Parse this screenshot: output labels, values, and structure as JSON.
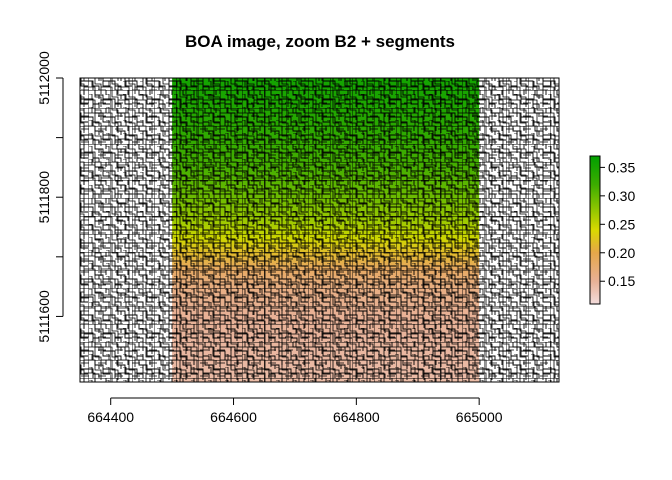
{
  "chart_data": {
    "type": "heatmap",
    "title": "BOA image, zoom B2 + segments",
    "xlabel": "",
    "ylabel": "",
    "xlim": [
      664350,
      665130
    ],
    "ylim": [
      5111490,
      5112000
    ],
    "x_ticks": [
      664400,
      664600,
      664800,
      665000
    ],
    "x_tick_labels": [
      "664400",
      "664600",
      "664800",
      "665000"
    ],
    "y_ticks": [
      5111600,
      5111700,
      5111800,
      5111900,
      5112000
    ],
    "y_tick_labels": [
      "5111600",
      "",
      "5111800",
      "",
      "5112000"
    ],
    "raster_extent": {
      "xmin": 664500,
      "xmax": 665000,
      "ymin": 5111490,
      "ymax": 5112000
    },
    "raster_profile": [
      {
        "y": 5112000,
        "value": 0.355
      },
      {
        "y": 5111950,
        "value": 0.345
      },
      {
        "y": 5111900,
        "value": 0.33
      },
      {
        "y": 5111850,
        "value": 0.315
      },
      {
        "y": 5111800,
        "value": 0.295
      },
      {
        "y": 5111760,
        "value": 0.27
      },
      {
        "y": 5111730,
        "value": 0.245
      },
      {
        "y": 5111705,
        "value": 0.215
      },
      {
        "y": 5111680,
        "value": 0.185
      },
      {
        "y": 5111660,
        "value": 0.17
      },
      {
        "y": 5111640,
        "value": 0.16
      },
      {
        "y": 5111600,
        "value": 0.15
      },
      {
        "y": 5111550,
        "value": 0.145
      },
      {
        "y": 5111490,
        "value": 0.14
      }
    ],
    "colorbar": {
      "range": [
        0.11,
        0.37
      ],
      "ticks": [
        0.15,
        0.2,
        0.25,
        0.3,
        0.35
      ],
      "tick_labels": [
        "0.15",
        "0.20",
        "0.25",
        "0.30",
        "0.35"
      ],
      "stops": [
        {
          "value": 0.11,
          "color": "#f3dcdc"
        },
        {
          "value": 0.15,
          "color": "#e8b196"
        },
        {
          "value": 0.2,
          "color": "#e6a64a"
        },
        {
          "value": 0.24,
          "color": "#d9d900"
        },
        {
          "value": 0.28,
          "color": "#88c400"
        },
        {
          "value": 0.32,
          "color": "#3cac00"
        },
        {
          "value": 0.37,
          "color": "#00a000"
        }
      ]
    },
    "segments_overlay": true,
    "segment_color": "#000000",
    "grid": false,
    "legend": "right"
  }
}
